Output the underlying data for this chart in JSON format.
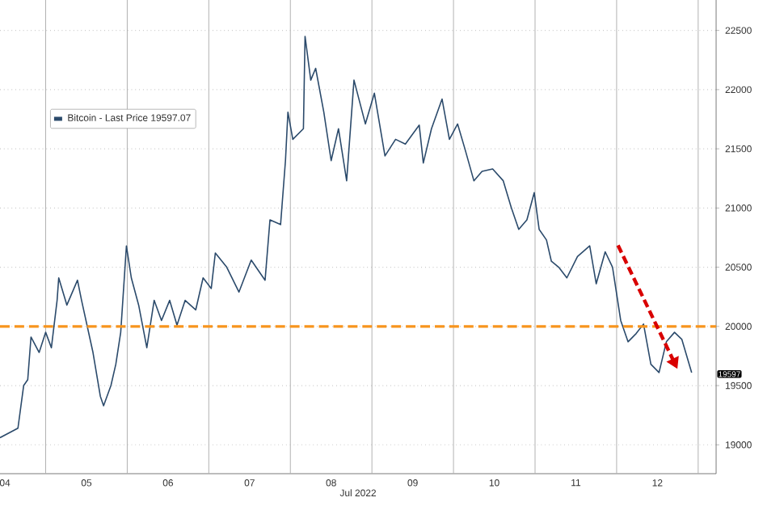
{
  "chart_data": {
    "type": "line",
    "xlabel": "Jul 2022",
    "xlim": [
      4.44,
      13.22
    ],
    "ylim": [
      18756,
      22757
    ],
    "xticks": [
      {
        "value": 4.5,
        "label": "04"
      },
      {
        "value": 5.5,
        "label": "05"
      },
      {
        "value": 6.5,
        "label": "06"
      },
      {
        "value": 7.5,
        "label": "07"
      },
      {
        "value": 8.5,
        "label": "08"
      },
      {
        "value": 9.5,
        "label": "09"
      },
      {
        "value": 10.5,
        "label": "10"
      },
      {
        "value": 11.5,
        "label": "11"
      },
      {
        "value": 12.5,
        "label": "12"
      },
      {
        "value": 5,
        "label": null
      },
      {
        "value": 6,
        "label": null
      },
      {
        "value": 7,
        "label": null
      },
      {
        "value": 8,
        "label": null
      },
      {
        "value": 9,
        "label": null
      },
      {
        "value": 10,
        "label": null
      },
      {
        "value": 11,
        "label": null
      },
      {
        "value": 12,
        "label": null
      },
      {
        "value": 13,
        "label": null
      }
    ],
    "yticks": [
      19000,
      19500,
      20000,
      20500,
      21000,
      21500,
      22000,
      22500
    ],
    "grid": true,
    "legend": "top left",
    "marker": "none",
    "line_style": "solid",
    "series": [
      {
        "name": "Bitcoin - Last Price 19597.07",
        "color": "#2b4a6b",
        "x": [
          4.44,
          4.66,
          4.73,
          4.78,
          4.82,
          4.92,
          5.0,
          5.07,
          5.14,
          5.16,
          5.26,
          5.39,
          5.44,
          5.58,
          5.67,
          5.71,
          5.8,
          5.86,
          5.92,
          5.99,
          6.05,
          6.14,
          6.24,
          6.33,
          6.42,
          6.52,
          6.61,
          6.71,
          6.84,
          6.93,
          7.03,
          7.08,
          7.22,
          7.37,
          7.52,
          7.69,
          7.75,
          7.88,
          7.94,
          7.97,
          8.03,
          8.16,
          8.18,
          8.25,
          8.31,
          8.41,
          8.5,
          8.59,
          8.69,
          8.78,
          8.92,
          9.03,
          9.16,
          9.29,
          9.41,
          9.58,
          9.63,
          9.73,
          9.86,
          9.95,
          10.05,
          10.14,
          10.25,
          10.35,
          10.48,
          10.61,
          10.71,
          10.8,
          10.9,
          10.99,
          11.05,
          11.14,
          11.2,
          11.29,
          11.39,
          11.52,
          11.67,
          11.75,
          11.86,
          11.95,
          12.05,
          12.14,
          12.24,
          12.33,
          12.42,
          12.52,
          12.61,
          12.71,
          12.8,
          12.92
        ],
        "values": [
          19060,
          19140,
          19500,
          19550,
          19910,
          19780,
          19950,
          19820,
          20220,
          20410,
          20180,
          20390,
          20220,
          19780,
          19410,
          19330,
          19500,
          19680,
          19950,
          20680,
          20410,
          20180,
          19820,
          20220,
          20050,
          20220,
          20010,
          20220,
          20140,
          20410,
          20320,
          20620,
          20500,
          20290,
          20560,
          20390,
          20900,
          20860,
          21400,
          21810,
          21580,
          21670,
          22450,
          22080,
          22180,
          21810,
          21400,
          21670,
          21230,
          22080,
          21710,
          21970,
          21440,
          21580,
          21540,
          21700,
          21380,
          21670,
          21920,
          21580,
          21710,
          21500,
          21230,
          21310,
          21330,
          21230,
          21000,
          20820,
          20900,
          21130,
          20820,
          20730,
          20550,
          20500,
          20410,
          20590,
          20680,
          20360,
          20630,
          20500,
          20050,
          19870,
          19940,
          20020,
          19680,
          19610,
          19870,
          19950,
          19890,
          19610
        ]
      }
    ],
    "ref_lines": [
      {
        "axis": "y",
        "value": 20000,
        "color": "#f7941d",
        "line_style": "dashed"
      }
    ],
    "annotations": [
      {
        "text": "19597",
        "y": 19597
      }
    ]
  }
}
